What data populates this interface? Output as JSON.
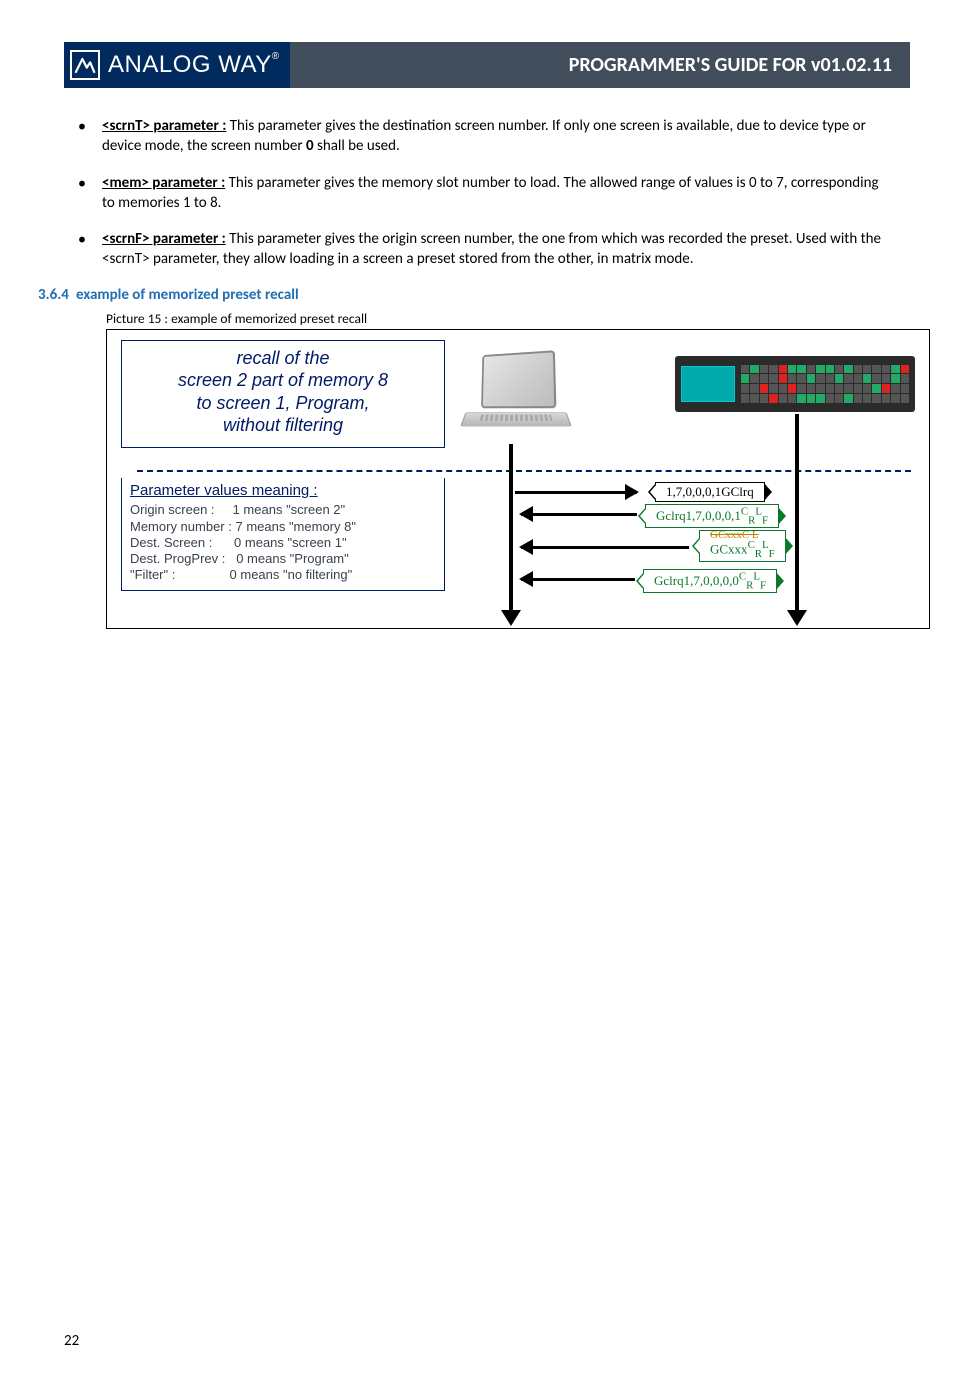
{
  "header": {
    "brand": "ANALOG WAY",
    "reg": "®",
    "title": "PROGRAMMER'S GUIDE FOR v01.02.11"
  },
  "bullets": [
    {
      "label": "<scrnT> parameter :",
      "text": " This parameter gives the destination screen number. If only one screen is available, due to device type or device mode, the screen number ",
      "bold_mid": "0",
      "tail": " shall be used."
    },
    {
      "label": "<mem> parameter :",
      "text": " This parameter gives the memory slot number to load. The allowed range of values is 0 to 7, corresponding to memories 1 to 8.",
      "bold_mid": "",
      "tail": ""
    },
    {
      "label": "<scrnF> parameter :",
      "text": " This parameter gives the origin screen number, the one from which was recorded the preset. Used with the <scrnT> parameter, they allow loading in a screen a preset stored from the other, in matrix mode.",
      "bold_mid": "",
      "tail": ""
    }
  ],
  "section": {
    "num": "3.6.4",
    "title": "example of memorized preset recall"
  },
  "picture_caption": "Picture 15 : example of memorized preset recall",
  "figure": {
    "recall_lines": [
      "recall of the",
      "screen 2 part of memory 8",
      "to screen 1, Program,",
      "without filtering"
    ],
    "pv_title": "Parameter values meaning :",
    "pv_rows": [
      "Origin screen :     1 means \"screen 2\"",
      "Memory number : 7 means \"memory 8\"",
      "Dest. Screen :      0 means \"screen 1\"",
      "Dest. ProgPrev :   0 means \"Program\"",
      "\"Filter\" :               0 means \"no filtering\""
    ],
    "labels": {
      "cmd_out": "1,7,0,0,0,1GClrq",
      "resp_1_html": "Gclrq1,7,0,0,0,1<sup>C</sup><sub>R</sub><sup>L</sup><sub>F</sub>",
      "resp_2_strike": "GCxxxC L",
      "resp_2_html": "GCxxx<sup>C</sup><sub>R</sub><sup>L</sup><sub>F</sub>",
      "resp_3_html": "Gclrq1,7,0,0,0,0<sup>C</sup><sub>R</sub><sup>L</sup><sub>F</sub>"
    }
  },
  "page_number": "22",
  "colors": {
    "header_blue": "#012a5e",
    "header_gray": "#414d5a",
    "heading_blue": "#1f6fb4",
    "box_blue": "#001a66",
    "green": "#0a7a2a"
  }
}
